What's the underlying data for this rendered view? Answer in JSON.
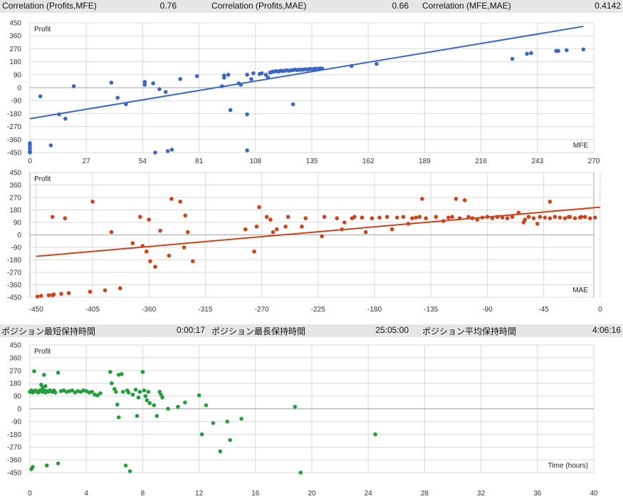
{
  "stats_top": [
    {
      "label": "Correlation (Profits,MFE)",
      "value": "0.76"
    },
    {
      "label": "Correlation (Profits,MAE)",
      "value": "0.66"
    },
    {
      "label": "Correlation (MFE,MAE)",
      "value": "0.4142"
    }
  ],
  "stats_mid": [
    {
      "label": "ポジション最短保持時間",
      "value": "0:00:17"
    },
    {
      "label": "ポジション最長保持時間",
      "value": "25:05:00"
    },
    {
      "label": "ポジション平均保持時間",
      "value": "4:06:16"
    }
  ],
  "colors": {
    "mfe": "#3a67c4",
    "mae": "#d0431a",
    "time": "#23a03a",
    "grid": "#d9d9d9",
    "axis": "#a6a6a6",
    "header_bg": "#e6e6e6"
  },
  "chart_data": [
    {
      "type": "scatter",
      "ylabel": "Profit",
      "xlabel": "MFE",
      "xlim": [
        0,
        270
      ],
      "ylim": [
        -450,
        450
      ],
      "xticks": [
        0,
        27,
        54,
        81,
        108,
        135,
        162,
        189,
        216,
        243,
        270
      ],
      "yticks": [
        450,
        360,
        270,
        180,
        90,
        0,
        -90,
        -180,
        -270,
        -360,
        -450
      ],
      "grid": true,
      "trendline": {
        "x": [
          0,
          265
        ],
        "y": [
          -215,
          425
        ]
      },
      "points": [
        [
          0,
          -450
        ],
        [
          0,
          -445
        ],
        [
          0,
          -440
        ],
        [
          0,
          -420
        ],
        [
          0,
          -400
        ],
        [
          0,
          -385
        ],
        [
          5,
          -60
        ],
        [
          10,
          -400
        ],
        [
          14,
          -185
        ],
        [
          17,
          -215
        ],
        [
          21,
          10
        ],
        [
          39,
          35
        ],
        [
          42,
          -70
        ],
        [
          46,
          -115
        ],
        [
          55,
          40
        ],
        [
          55,
          20
        ],
        [
          59,
          30
        ],
        [
          60,
          -450
        ],
        [
          62,
          -10
        ],
        [
          65,
          -30
        ],
        [
          66,
          -440
        ],
        [
          68,
          -430
        ],
        [
          72,
          60
        ],
        [
          80,
          80
        ],
        [
          92,
          10
        ],
        [
          93,
          70
        ],
        [
          93,
          85
        ],
        [
          95,
          90
        ],
        [
          96,
          -155
        ],
        [
          100,
          30
        ],
        [
          101,
          20
        ],
        [
          104,
          90
        ],
        [
          104,
          -185
        ],
        [
          104,
          -435
        ],
        [
          106,
          60
        ],
        [
          107,
          100
        ],
        [
          110,
          95
        ],
        [
          111,
          100
        ],
        [
          113,
          90
        ],
        [
          114,
          70
        ],
        [
          115,
          105
        ],
        [
          116,
          110
        ],
        [
          117,
          112
        ],
        [
          118,
          115
        ],
        [
          119,
          112
        ],
        [
          120,
          118
        ],
        [
          121,
          115
        ],
        [
          122,
          118
        ],
        [
          123,
          120
        ],
        [
          124,
          118
        ],
        [
          125,
          120
        ],
        [
          126,
          122
        ],
        [
          126,
          -115
        ],
        [
          127,
          125
        ],
        [
          128,
          122
        ],
        [
          129,
          125
        ],
        [
          130,
          124
        ],
        [
          131,
          126
        ],
        [
          132,
          128
        ],
        [
          133,
          126
        ],
        [
          134,
          130
        ],
        [
          135,
          128
        ],
        [
          136,
          130
        ],
        [
          137,
          132
        ],
        [
          138,
          130
        ],
        [
          139,
          134
        ],
        [
          140,
          132
        ],
        [
          154,
          150
        ],
        [
          166,
          165
        ],
        [
          231,
          200
        ],
        [
          238,
          235
        ],
        [
          240,
          240
        ],
        [
          252,
          255
        ],
        [
          253,
          255
        ],
        [
          257,
          260
        ],
        [
          265,
          265
        ]
      ]
    },
    {
      "type": "scatter",
      "ylabel": "Profit",
      "xlabel": "MAE",
      "xlim": [
        -455,
        -5
      ],
      "ylim": [
        -450,
        450
      ],
      "xticks": [
        -450,
        -405,
        -360,
        -315,
        -270,
        -225,
        -180,
        -135,
        -90,
        -45,
        0
      ],
      "yticks": [
        450,
        360,
        270,
        180,
        90,
        0,
        -90,
        -180,
        -270,
        -360,
        -450
      ],
      "grid": true,
      "trendline": {
        "x": [
          -450,
          0
        ],
        "y": [
          -155,
          200
        ]
      },
      "points": [
        [
          -449,
          -445
        ],
        [
          -446,
          -440
        ],
        [
          -440,
          -435
        ],
        [
          -437,
          -435
        ],
        [
          -436,
          -430
        ],
        [
          -430,
          -425
        ],
        [
          -424,
          -420
        ],
        [
          -437,
          130
        ],
        [
          -427,
          120
        ],
        [
          -407,
          -410
        ],
        [
          -405,
          240
        ],
        [
          -395,
          -400
        ],
        [
          -390,
          20
        ],
        [
          -383,
          -385
        ],
        [
          -373,
          -60
        ],
        [
          -367,
          130
        ],
        [
          -365,
          -80
        ],
        [
          -362,
          -120
        ],
        [
          -360,
          110
        ],
        [
          -359,
          -190
        ],
        [
          -355,
          -230
        ],
        [
          -351,
          30
        ],
        [
          -344,
          -150
        ],
        [
          -342,
          260
        ],
        [
          -335,
          240
        ],
        [
          -332,
          -90
        ],
        [
          -331,
          140
        ],
        [
          -329,
          20
        ],
        [
          -325,
          -190
        ],
        [
          -283,
          40
        ],
        [
          -276,
          -120
        ],
        [
          -274,
          60
        ],
        [
          -272,
          200
        ],
        [
          -266,
          130
        ],
        [
          -263,
          110
        ],
        [
          -261,
          20
        ],
        [
          -258,
          40
        ],
        [
          -251,
          60
        ],
        [
          -249,
          130
        ],
        [
          -238,
          60
        ],
        [
          -235,
          120
        ],
        [
          -222,
          -10
        ],
        [
          -220,
          130
        ],
        [
          -210,
          120
        ],
        [
          -206,
          40
        ],
        [
          -204,
          90
        ],
        [
          -198,
          120
        ],
        [
          -196,
          130
        ],
        [
          -190,
          125
        ],
        [
          -187,
          20
        ],
        [
          -182,
          120
        ],
        [
          -176,
          125
        ],
        [
          -170,
          130
        ],
        [
          -166,
          40
        ],
        [
          -162,
          125
        ],
        [
          -157,
          130
        ],
        [
          -153,
          80
        ],
        [
          -150,
          120
        ],
        [
          -147,
          125
        ],
        [
          -144,
          130
        ],
        [
          -142,
          260
        ],
        [
          -139,
          120
        ],
        [
          -131,
          130
        ],
        [
          -125,
          100
        ],
        [
          -121,
          125
        ],
        [
          -118,
          130
        ],
        [
          -115,
          260
        ],
        [
          -112,
          120
        ],
        [
          -108,
          250
        ],
        [
          -105,
          130
        ],
        [
          -102,
          120
        ],
        [
          -98,
          110
        ],
        [
          -94,
          125
        ],
        [
          -90,
          130
        ],
        [
          -86,
          120
        ],
        [
          -82,
          130
        ],
        [
          -78,
          125
        ],
        [
          -74,
          120
        ],
        [
          -70,
          130
        ],
        [
          -65,
          160
        ],
        [
          -61,
          90
        ],
        [
          -57,
          130
        ],
        [
          -53,
          120
        ],
        [
          -48,
          130
        ],
        [
          -44,
          125
        ],
        [
          -40,
          120
        ],
        [
          -36,
          130
        ],
        [
          -32,
          125
        ],
        [
          -28,
          120
        ],
        [
          -24,
          130
        ],
        [
          -20,
          120
        ],
        [
          -16,
          125
        ],
        [
          -12,
          130
        ],
        [
          -8,
          120
        ],
        [
          -4,
          125
        ],
        [
          -40,
          240
        ],
        [
          -60,
          110
        ],
        [
          -50,
          80
        ],
        [
          -25,
          130
        ],
        [
          -15,
          130
        ]
      ]
    },
    {
      "type": "scatter",
      "ylabel": "Profit",
      "xlabel": "Time (hours)",
      "xlim": [
        0,
        40
      ],
      "ylim": [
        -450,
        450
      ],
      "xticks": [
        0,
        4,
        8,
        12,
        16,
        20,
        24,
        28,
        32,
        36,
        40
      ],
      "yticks": [
        450,
        360,
        270,
        180,
        90,
        0,
        -90,
        -180,
        -270,
        -360,
        -450
      ],
      "grid": true,
      "points": [
        [
          0,
          120
        ],
        [
          0.1,
          130
        ],
        [
          0.2,
          115
        ],
        [
          0.3,
          125
        ],
        [
          0.4,
          130
        ],
        [
          0.5,
          120
        ],
        [
          0.6,
          115
        ],
        [
          0.7,
          130
        ],
        [
          0.8,
          125
        ],
        [
          0.9,
          120
        ],
        [
          1.0,
          130
        ],
        [
          1.1,
          115
        ],
        [
          1.2,
          125
        ],
        [
          1.3,
          120
        ],
        [
          1.4,
          130
        ],
        [
          1.5,
          125
        ],
        [
          1.6,
          120
        ],
        [
          1.7,
          130
        ],
        [
          1.8,
          115
        ],
        [
          0.3,
          265
        ],
        [
          0.8,
          170
        ],
        [
          0.9,
          150
        ],
        [
          1.0,
          240
        ],
        [
          1.1,
          160
        ],
        [
          2.0,
          255
        ],
        [
          2.2,
          125
        ],
        [
          2.4,
          130
        ],
        [
          2.6,
          120
        ],
        [
          2.8,
          125
        ],
        [
          3.0,
          130
        ],
        [
          3.2,
          115
        ],
        [
          3.4,
          125
        ],
        [
          3.6,
          120
        ],
        [
          3.8,
          130
        ],
        [
          4.0,
          125
        ],
        [
          4.2,
          115
        ],
        [
          4.4,
          120
        ],
        [
          4.6,
          100
        ],
        [
          4.8,
          95
        ],
        [
          5.0,
          110
        ],
        [
          0.1,
          -425
        ],
        [
          0.2,
          -410
        ],
        [
          1.2,
          -400
        ],
        [
          2.0,
          -385
        ],
        [
          5.7,
          260
        ],
        [
          5.8,
          180
        ],
        [
          6.0,
          140
        ],
        [
          6.1,
          120
        ],
        [
          6.2,
          30
        ],
        [
          6.3,
          -60
        ],
        [
          6.3,
          240
        ],
        [
          6.5,
          245
        ],
        [
          6.6,
          120
        ],
        [
          6.8,
          -400
        ],
        [
          6.9,
          130
        ],
        [
          7.0,
          115
        ],
        [
          7.1,
          -440
        ],
        [
          7.3,
          100
        ],
        [
          7.5,
          135
        ],
        [
          7.6,
          -50
        ],
        [
          7.7,
          80
        ],
        [
          7.8,
          120
        ],
        [
          8.0,
          260
        ],
        [
          8.1,
          130
        ],
        [
          8.2,
          90
        ],
        [
          8.3,
          60
        ],
        [
          8.4,
          120
        ],
        [
          8.5,
          40
        ],
        [
          8.8,
          25
        ],
        [
          9.0,
          -50
        ],
        [
          9.2,
          120
        ],
        [
          9.3,
          100
        ],
        [
          9.4,
          80
        ],
        [
          9.8,
          0
        ],
        [
          10.5,
          15
        ],
        [
          11,
          45
        ],
        [
          12,
          95
        ],
        [
          12.2,
          -180
        ],
        [
          12.5,
          25
        ],
        [
          13,
          -100
        ],
        [
          13.5,
          -300
        ],
        [
          14,
          -90
        ],
        [
          14.2,
          -220
        ],
        [
          15,
          -70
        ],
        [
          18.8,
          15
        ],
        [
          19.2,
          -450
        ],
        [
          24.5,
          -180
        ]
      ]
    }
  ]
}
